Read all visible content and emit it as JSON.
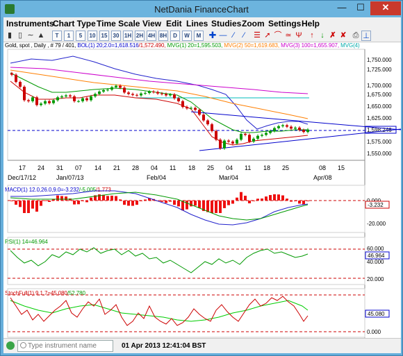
{
  "window": {
    "title": "NetDania FinanceChart"
  },
  "menu": [
    "Instruments",
    "Chart Type",
    "Time Scale",
    "View",
    "Edit",
    "Lines",
    "Studies",
    "Zoom",
    "Settings",
    "Help"
  ],
  "toolbar": {
    "time_buttons": [
      "T",
      "1",
      "5",
      "10",
      "15",
      "30",
      "1H",
      "2H",
      "4H",
      "8H",
      "D",
      "W",
      "M"
    ]
  },
  "legends": {
    "main": [
      {
        "text": "Gold, spot , Daily , # 79 / 401, ",
        "color": "#000000"
      },
      {
        "text": "BOL(1) 20;2.0=1,618.516",
        "color": "#0000cc"
      },
      {
        "text": "/1,572.490, ",
        "color": "#cc0000"
      },
      {
        "text": "MVG(1) 20=1,595.503, ",
        "color": "#009900"
      },
      {
        "text": "MVG(2) 50=1,619.683, ",
        "color": "#ff7f00"
      },
      {
        "text": "MVG(3) 100=1,655.907, ",
        "color": "#cc00cc"
      },
      {
        "text": "MVG(4)",
        "color": "#00aaaa"
      }
    ],
    "macd": [
      {
        "text": "MACD(1) 12.0,26.0,9.0=-3.232",
        "color": "#0000cc"
      },
      {
        "text": "/-5.005",
        "color": "#009900"
      },
      {
        "text": "/1.773",
        "color": "#cc0000"
      }
    ],
    "rsi": [
      {
        "text": "RSI(1) 14=46.964",
        "color": "#009900"
      }
    ],
    "stoch": [
      {
        "text": "StochFull(1) 9,1,7=45.080",
        "color": "#cc0000"
      },
      {
        "text": "/52.780",
        "color": "#009900"
      }
    ]
  },
  "axes": {
    "price_ticks": [
      "1,750.000",
      "1,725.000",
      "1,700.000",
      "1,675.000",
      "1,650.000",
      "1,625.000",
      "1,600.000",
      "1,575.000",
      "1,550.000"
    ],
    "last_price": "1,598.246",
    "macd_ticks": [
      "0.000",
      "-20.000"
    ],
    "macd_last": "-3.232",
    "rsi_ticks": [
      "60.000",
      "40.000",
      "20.000"
    ],
    "rsi_last": "46.964",
    "stoch_ticks": [
      "45.080",
      "0.000"
    ],
    "date_top": [
      "17",
      "24",
      "31",
      "07",
      "14",
      "21",
      "28",
      "04",
      "11",
      "18",
      "25",
      "04",
      "11",
      "18",
      "25",
      "08",
      "15"
    ],
    "date_bottom": [
      "Dec/17/12",
      "Jan/07/13",
      "Feb/04",
      "Mar/04",
      "Apr/08"
    ]
  },
  "chart_data": {
    "type": "line",
    "title": "Gold, spot , Daily",
    "ylim": [
      1540,
      1765
    ],
    "close": [
      1715,
      1700,
      1690,
      1662,
      1660,
      1668,
      1652,
      1655,
      1660,
      1656,
      1662,
      1668,
      1670,
      1672,
      1670,
      1660,
      1660,
      1666,
      1662,
      1670,
      1675,
      1680,
      1683,
      1684,
      1689,
      1692,
      1688,
      1678,
      1675,
      1673,
      1672,
      1676,
      1677,
      1680,
      1679,
      1676,
      1675,
      1672,
      1674,
      1666,
      1660,
      1648,
      1645,
      1646,
      1642,
      1632,
      1620,
      1612,
      1598,
      1580,
      1562,
      1578,
      1576,
      1572,
      1580,
      1592,
      1590,
      1576,
      1582,
      1588,
      1590,
      1594,
      1598,
      1604,
      1608,
      1610,
      1607,
      1603,
      1605,
      1600,
      1596,
      1601
    ]
  },
  "status": {
    "instrument_placeholder": "Type instrument name",
    "time": "01 Apr 2013 12:41:04 BST"
  }
}
